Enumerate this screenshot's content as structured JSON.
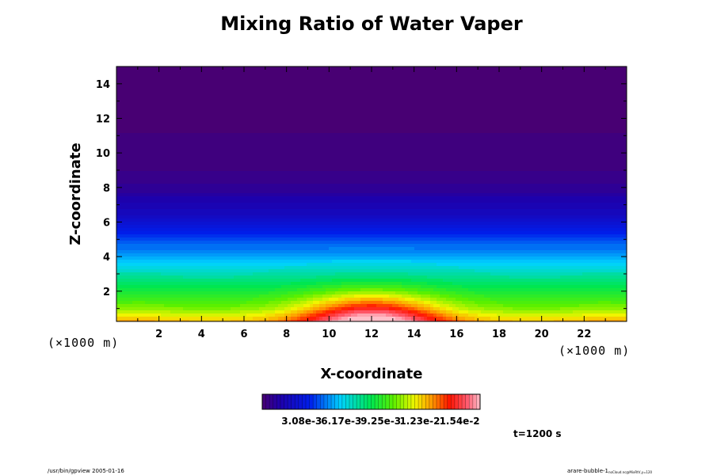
{
  "chart_data": {
    "type": "heatmap",
    "title": "Mixing Ratio of Water Vaper",
    "xlabel": "X-coordinate",
    "ylabel": "Z-coordinate",
    "x_unit": "(×1000 m)",
    "y_unit": "(×1000 m)",
    "xlim": [
      0,
      24
    ],
    "ylim": [
      0.25,
      15
    ],
    "x_ticks": [
      2,
      4,
      6,
      8,
      10,
      12,
      14,
      16,
      18,
      20,
      22
    ],
    "y_ticks": [
      2,
      4,
      6,
      8,
      10,
      12,
      14
    ],
    "colorbar": {
      "min": 0,
      "max": 0.017,
      "ticks": [
        0.00308,
        0.00617,
        0.00925,
        0.0123,
        0.0154
      ],
      "tick_labels": [
        "3.08e-3",
        "6.17e-3",
        "9.25e-3",
        "1.23e-2",
        "1.54e-2"
      ]
    },
    "field": {
      "description_values": "surface ~0.0125, decreasing with height to ~0 above 9 km; moist bubble centered at x=12 km reaching ~0.017 near surface and ~0.009 at 2 km",
      "background_profile": [
        [
          0.25,
          0.0125
        ],
        [
          1.0,
          0.0105
        ],
        [
          2.0,
          0.0088
        ],
        [
          3.0,
          0.0072
        ],
        [
          4.0,
          0.0056
        ],
        [
          5.0,
          0.0042
        ],
        [
          6.0,
          0.0026
        ],
        [
          7.0,
          0.0016
        ],
        [
          8.0,
          0.0008
        ],
        [
          9.0,
          0.0004
        ],
        [
          10.0,
          0.0002
        ],
        [
          12.0,
          0.0001
        ],
        [
          15.0,
          5e-05
        ]
      ],
      "bubble_center": [
        12,
        0.25
      ],
      "bubble_half_width": [
        3.3,
        1.7
      ],
      "bubble_peak_increment": 0.0055
    },
    "time_label": "t=1200 s"
  },
  "footer": {
    "left": "/usr/bin/gpview 2005-01-16",
    "right": "arare-bubble-1",
    "right_sub": "noCloud.nc@MixRtV,y=120"
  }
}
